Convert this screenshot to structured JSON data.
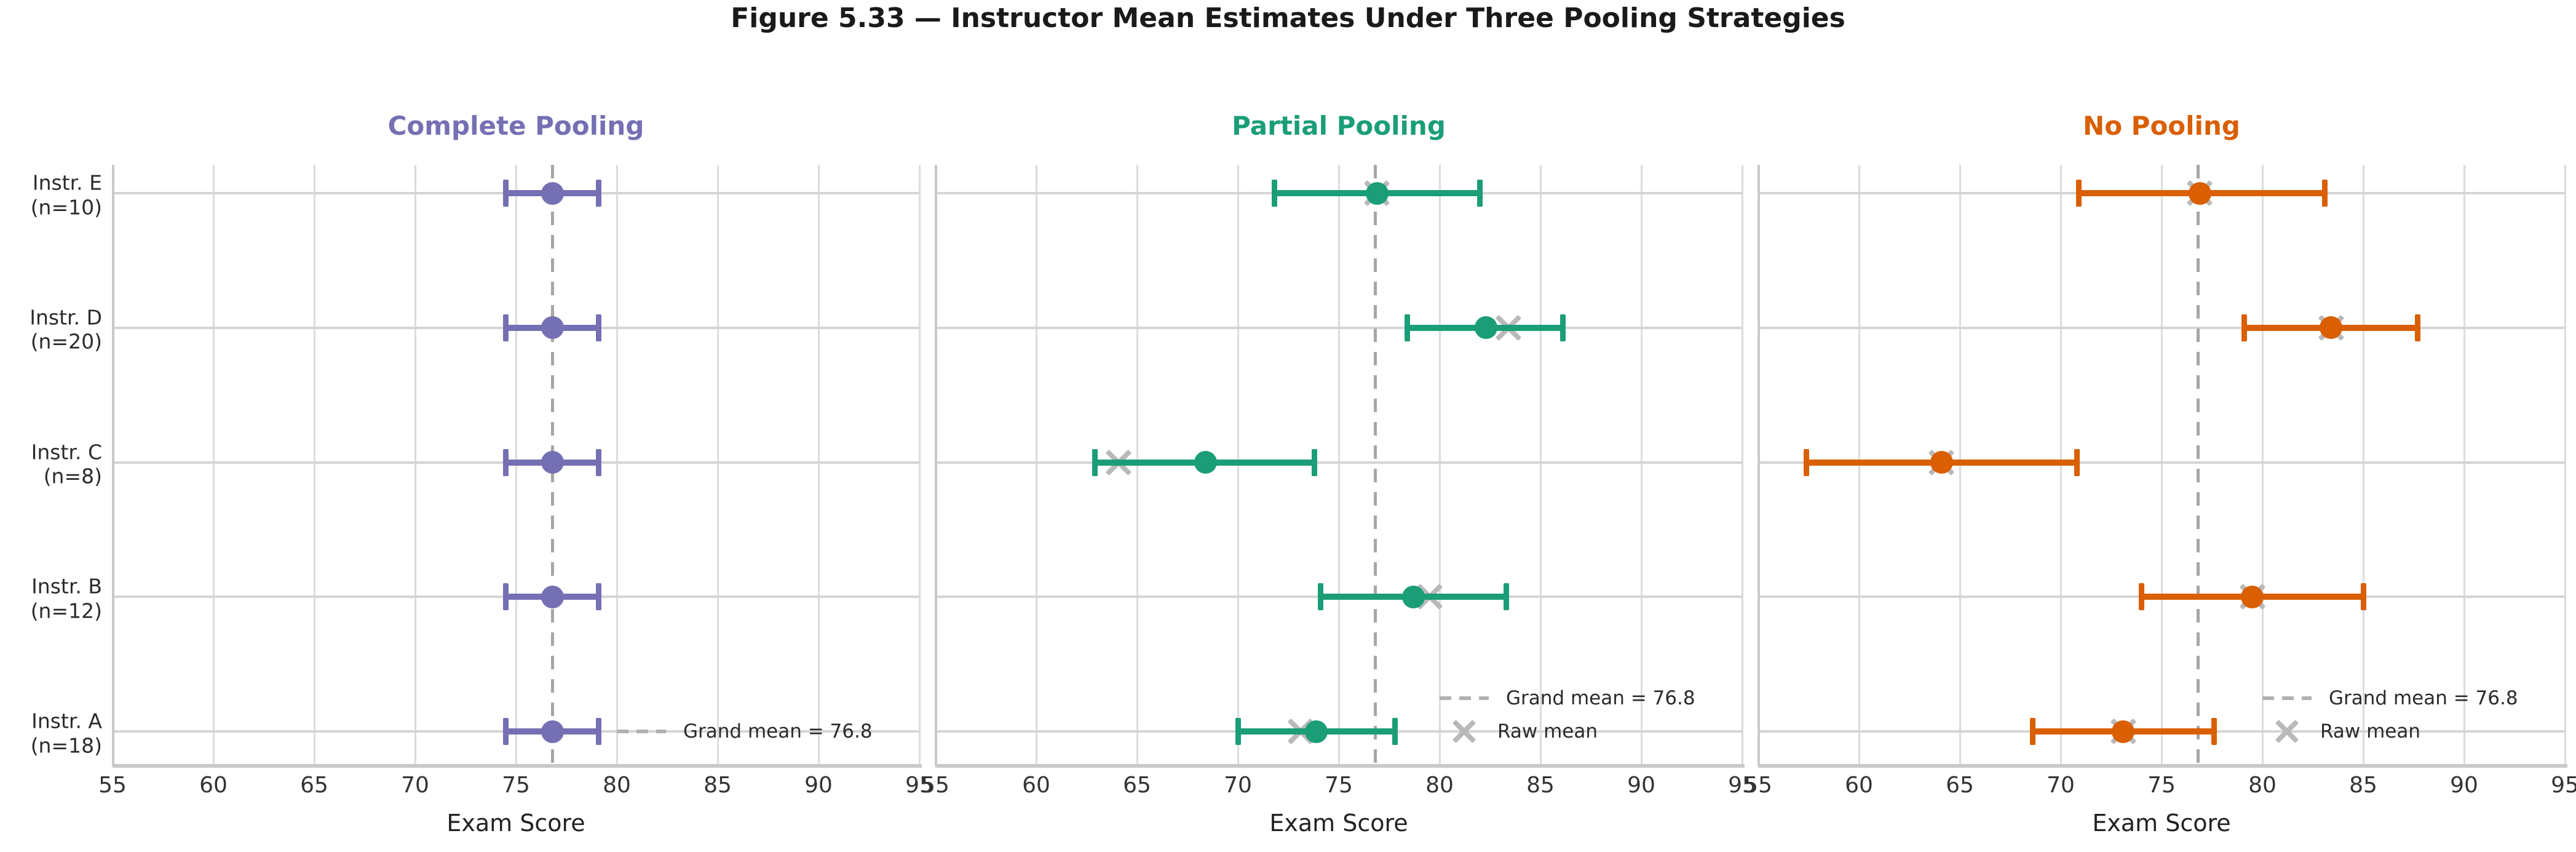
{
  "title": "Figure 5.33 — Instructor Mean Estimates Under Three Pooling Strategies",
  "colors": {
    "complete_pooling": "#7570b3",
    "partial_pooling": "#1b9e77",
    "no_pooling": "#d95f02",
    "grand_mean_line": "#a6a6a6",
    "raw_mean_marker": "#b9b9b9",
    "grid_line": "#dcdcdc",
    "row_line": "#d5d5d5",
    "axis_spine": "#c9c9c9"
  },
  "chart_data": {
    "type": "errorbar-dot-plot",
    "title": "Figure 5.33 — Instructor Mean Estimates Under Three Pooling Strategies",
    "xlabel": "Exam Score",
    "xlim": [
      55,
      95
    ],
    "x_ticks": [
      55,
      60,
      65,
      70,
      75,
      80,
      85,
      90,
      95
    ],
    "grid": true,
    "grand_mean": 76.8,
    "rows": [
      {
        "label": "Instr. E",
        "n_label": "(n=10)",
        "n": 10,
        "raw_mean": 76.9
      },
      {
        "label": "Instr. D",
        "n_label": "(n=20)",
        "n": 20,
        "raw_mean": 83.4
      },
      {
        "label": "Instr. C",
        "n_label": "(n=8)",
        "n": 8,
        "raw_mean": 64.1
      },
      {
        "label": "Instr. B",
        "n_label": "(n=12)",
        "n": 12,
        "raw_mean": 79.5
      },
      {
        "label": "Instr. A",
        "n_label": "(n=18)",
        "n": 18,
        "raw_mean": 73.1
      }
    ],
    "panels": [
      {
        "title": "Complete Pooling",
        "color": "#7570b3",
        "show_raw_markers": false,
        "estimates": [
          76.8,
          76.8,
          76.8,
          76.8,
          76.8
        ],
        "ci_lo": [
          74.5,
          74.5,
          74.5,
          74.5,
          74.5
        ],
        "ci_hi": [
          79.1,
          79.1,
          79.1,
          79.1,
          79.1
        ],
        "legend_entries": [
          "grand"
        ]
      },
      {
        "title": "Partial Pooling",
        "color": "#1b9e77",
        "show_raw_markers": true,
        "estimates": [
          76.9,
          82.3,
          68.4,
          78.7,
          73.9
        ],
        "ci_lo": [
          71.8,
          78.4,
          62.9,
          74.1,
          70.0
        ],
        "ci_hi": [
          82.0,
          86.1,
          73.8,
          83.3,
          77.8
        ],
        "legend_entries": [
          "grand",
          "raw"
        ]
      },
      {
        "title": "No Pooling",
        "color": "#d95f02",
        "show_raw_markers": true,
        "estimates": [
          76.9,
          83.4,
          64.1,
          79.5,
          73.1
        ],
        "ci_lo": [
          70.9,
          79.1,
          57.4,
          74.0,
          68.6
        ],
        "ci_hi": [
          83.1,
          87.7,
          70.8,
          85.0,
          77.6
        ],
        "legend_entries": [
          "grand",
          "raw"
        ]
      }
    ],
    "legend_labels": {
      "grand": "Grand mean = 76.8",
      "raw": "Raw mean"
    }
  }
}
